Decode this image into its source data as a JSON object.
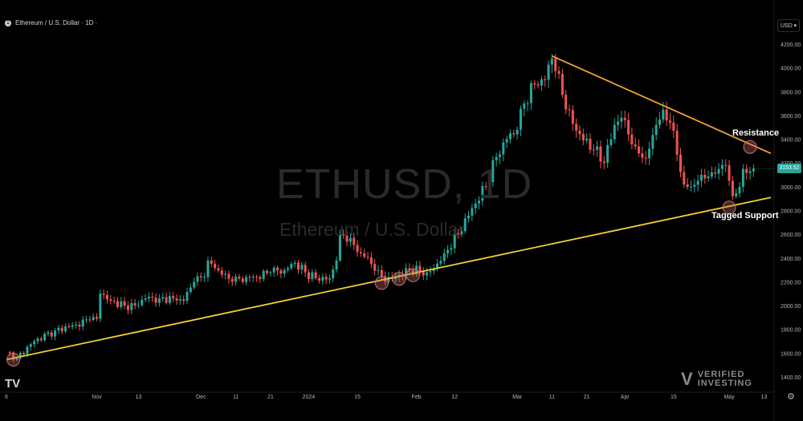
{
  "header": {
    "symbol_logo": "Ξ",
    "title": "Ethereum / U.S. Dollar · 1D ·"
  },
  "currency_button": {
    "label": "USD",
    "icon": "chevron-down-icon"
  },
  "watermark": {
    "symbol": "ETHUSD, 1D",
    "name": "Ethereum / U.S. Dollar"
  },
  "branding": {
    "tv": "TV",
    "vi_mark": "V",
    "vi_line1": "VERIFIED",
    "vi_line2": "INVESTING"
  },
  "settings_icon": "gear-icon",
  "last_price": "3153.52",
  "colors": {
    "up": "#26a69a",
    "down": "#ef5350",
    "support": "#f5d033",
    "resistance": "#f0a030",
    "marker": "#c87070"
  },
  "chart_data": {
    "type": "candlestick",
    "title": "ETHUSD, 1D",
    "subtitle": "Ethereum / U.S. Dollar",
    "ylim": [
      1300,
      4350
    ],
    "y_ticks": [
      1400,
      1600,
      1800,
      2000,
      2200,
      2400,
      2600,
      2800,
      3000,
      3200,
      3400,
      3600,
      3800,
      4000,
      4200
    ],
    "y_tick_labels": [
      "1400.00",
      "1600.00",
      "1800.00",
      "2000.00",
      "2200.00",
      "2400.00",
      "2600.00",
      "2800.00",
      "3000.00",
      "3200.00",
      "3400.00",
      "3600.00",
      "3800.00",
      "4000.00",
      "4200.00"
    ],
    "x_ticks": [
      {
        "label": "6",
        "day": 0
      },
      {
        "label": "Nov",
        "day": 26
      },
      {
        "label": "13",
        "day": 38
      },
      {
        "label": "Dec",
        "day": 56
      },
      {
        "label": "11",
        "day": 66
      },
      {
        "label": "21",
        "day": 76
      },
      {
        "label": "2024",
        "day": 87
      },
      {
        "label": "15",
        "day": 101
      },
      {
        "label": "Feb",
        "day": 118
      },
      {
        "label": "12",
        "day": 129
      },
      {
        "label": "Mar",
        "day": 147
      },
      {
        "label": "11",
        "day": 157
      },
      {
        "label": "21",
        "day": 167
      },
      {
        "label": "Apr",
        "day": 178
      },
      {
        "label": "15",
        "day": 192
      },
      {
        "label": "May",
        "day": 208
      },
      {
        "label": "13",
        "day": 218
      }
    ],
    "x_domain_days": [
      0,
      220
    ],
    "anchors": [
      [
        0,
        1610
      ],
      [
        3,
        1560
      ],
      [
        8,
        1700
      ],
      [
        14,
        1790
      ],
      [
        20,
        1840
      ],
      [
        24,
        1880
      ],
      [
        26,
        1890
      ],
      [
        27,
        2100
      ],
      [
        30,
        2040
      ],
      [
        34,
        2000
      ],
      [
        37,
        2000
      ],
      [
        40,
        2060
      ],
      [
        44,
        2060
      ],
      [
        48,
        2060
      ],
      [
        51,
        2040
      ],
      [
        54,
        2200
      ],
      [
        57,
        2240
      ],
      [
        58,
        2380
      ],
      [
        62,
        2260
      ],
      [
        65,
        2200
      ],
      [
        69,
        2240
      ],
      [
        72,
        2240
      ],
      [
        76,
        2280
      ],
      [
        80,
        2300
      ],
      [
        83,
        2360
      ],
      [
        86,
        2280
      ],
      [
        89,
        2230
      ],
      [
        93,
        2230
      ],
      [
        95,
        2380
      ],
      [
        96,
        2600
      ],
      [
        99,
        2570
      ],
      [
        101,
        2450
      ],
      [
        103,
        2410
      ],
      [
        107,
        2300
      ],
      [
        109,
        2200
      ],
      [
        112,
        2240
      ],
      [
        116,
        2300
      ],
      [
        121,
        2280
      ],
      [
        123,
        2310
      ],
      [
        126,
        2440
      ],
      [
        130,
        2600
      ],
      [
        134,
        2820
      ],
      [
        138,
        3000
      ],
      [
        141,
        3250
      ],
      [
        144,
        3400
      ],
      [
        147,
        3480
      ],
      [
        149,
        3700
      ],
      [
        152,
        3860
      ],
      [
        155,
        3900
      ],
      [
        157,
        4080
      ],
      [
        159,
        3950
      ],
      [
        161,
        3650
      ],
      [
        163,
        3530
      ],
      [
        166,
        3390
      ],
      [
        169,
        3310
      ],
      [
        172,
        3200
      ],
      [
        175,
        3520
      ],
      [
        177,
        3580
      ],
      [
        179,
        3440
      ],
      [
        181,
        3340
      ],
      [
        184,
        3240
      ],
      [
        187,
        3520
      ],
      [
        189,
        3650
      ],
      [
        191,
        3540
      ],
      [
        193,
        3270
      ],
      [
        195,
        3020
      ],
      [
        197,
        3000
      ],
      [
        200,
        3100
      ],
      [
        203,
        3120
      ],
      [
        205,
        3150
      ],
      [
        207,
        3180
      ],
      [
        208,
        3050
      ],
      [
        209,
        2920
      ],
      [
        211,
        3000
      ],
      [
        212,
        3150
      ],
      [
        214,
        3130
      ],
      [
        215,
        3153.52
      ]
    ],
    "support_line": {
      "start": {
        "day": 0,
        "price": 1545
      },
      "end": {
        "day": 220,
        "price": 2910
      },
      "label": "Tagged Support"
    },
    "resistance_line": {
      "start": {
        "day": 157,
        "price": 4100
      },
      "end": {
        "day": 220,
        "price": 3280
      },
      "label": "Resistance"
    },
    "markers": [
      {
        "day": 2,
        "price": 1545
      },
      {
        "day": 108,
        "price": 2190
      },
      {
        "day": 113,
        "price": 2225
      },
      {
        "day": 117,
        "price": 2255
      },
      {
        "day": 208,
        "price": 2825
      },
      {
        "day": 214,
        "price": 3335
      }
    ],
    "last_price": 3153.52
  }
}
